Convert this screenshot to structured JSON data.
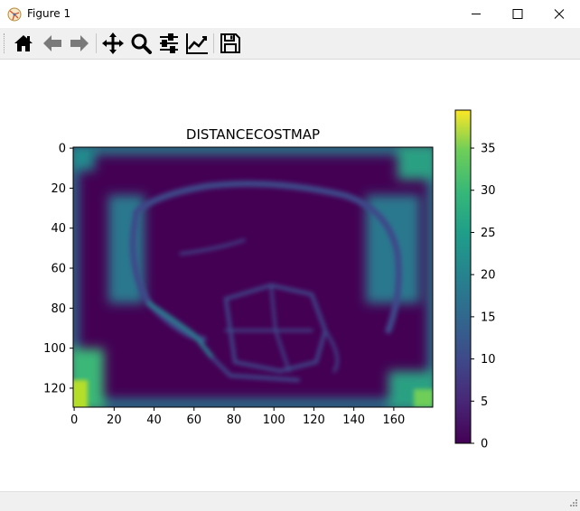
{
  "window": {
    "title": "Figure 1",
    "controls": [
      "minimize",
      "maximize",
      "close"
    ]
  },
  "toolbar": {
    "buttons": [
      {
        "name": "home",
        "icon": "home-icon"
      },
      {
        "name": "back",
        "icon": "arrow-left-icon"
      },
      {
        "name": "forward",
        "icon": "arrow-right-icon"
      },
      {
        "name": "pan",
        "icon": "move-icon"
      },
      {
        "name": "zoom",
        "icon": "magnifier-icon"
      },
      {
        "name": "configure-subplots",
        "icon": "sliders-icon"
      },
      {
        "name": "edit-axis",
        "icon": "line-chart-icon"
      },
      {
        "name": "save",
        "icon": "floppy-disk-icon"
      }
    ]
  },
  "chart_data": {
    "type": "heatmap",
    "title": "DISTANCECOSTMAP",
    "xlabel": "",
    "ylabel": "",
    "xlim": [
      0,
      179
    ],
    "ylim": [
      130,
      0
    ],
    "x_ticks": [
      "0",
      "20",
      "40",
      "60",
      "80",
      "100",
      "120",
      "140",
      "160"
    ],
    "y_ticks": [
      "0",
      "20",
      "40",
      "60",
      "80",
      "100",
      "120"
    ],
    "colorbar": {
      "colormap": "viridis",
      "range": [
        0,
        39.5
      ],
      "ticks": [
        "0",
        "5",
        "10",
        "15",
        "20",
        "25",
        "30",
        "35"
      ]
    },
    "grid": false
  }
}
